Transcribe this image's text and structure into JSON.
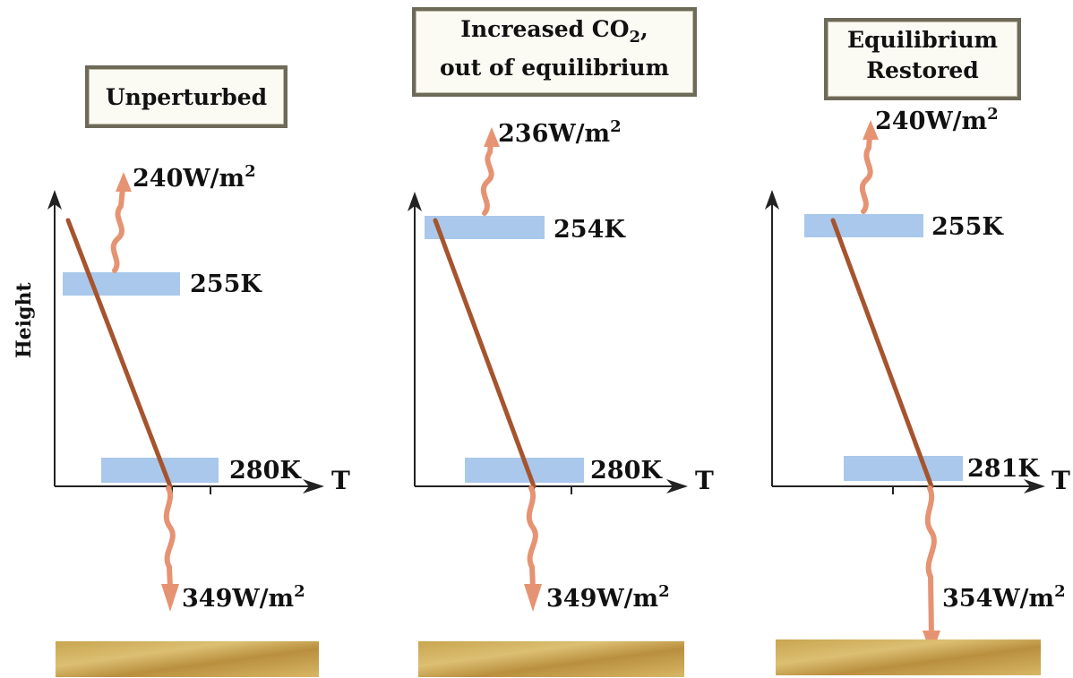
{
  "axis": {
    "y_label": "Height",
    "x_label": "T"
  },
  "panels": [
    {
      "title": "Unperturbed",
      "top_flux_value": "240W/m",
      "top_flux_exp": "2",
      "top_temp": "255K",
      "surface_temp": "280K",
      "bottom_flux_value": "349W/m",
      "bottom_flux_exp": "2"
    },
    {
      "title_line1_main": "Increased CO",
      "title_line1_sub": "2",
      "title_line1_end": ",",
      "title_line2": "out of equilibrium",
      "top_flux_value": "236W/m",
      "top_flux_exp": "2",
      "top_temp": "254K",
      "surface_temp": "280K",
      "bottom_flux_value": "349W/m",
      "bottom_flux_exp": "2"
    },
    {
      "title_line1": "Equilibrium",
      "title_line2": "Restored",
      "top_flux_value": "240W/m",
      "top_flux_exp": "2",
      "top_temp": "255K",
      "surface_temp": "281K",
      "bottom_flux_value": "354W/m",
      "bottom_flux_exp": "2"
    }
  ],
  "colors": {
    "layer_band": "#a9c8ec",
    "lapse_line": "#a6542e",
    "flux_arrow": "#e69373",
    "ground": "#c9a555",
    "axis": "#222222"
  }
}
